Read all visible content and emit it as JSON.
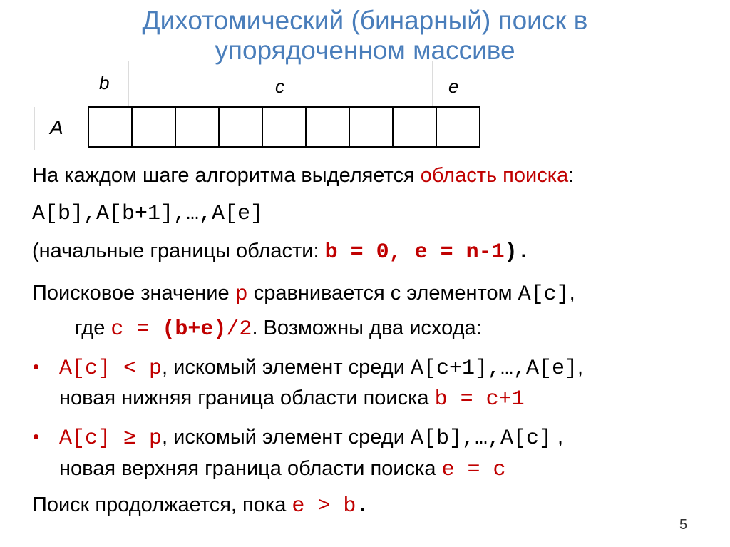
{
  "title": {
    "line1": "Дихотомический (бинарный) поиск в",
    "line2": "упорядоченном массиве"
  },
  "diagram": {
    "array_label": "A",
    "cell_count": 9,
    "index_labels": [
      "b",
      "c",
      "e"
    ]
  },
  "accent_color": "#c00000",
  "title_color": "#4a7ebb",
  "lines": [
    [
      {
        "t": "На каждом шаге алгоритма выделяется ",
        "c": ""
      },
      {
        "t": "область поиска",
        "c": "r"
      },
      {
        "t": ":",
        "c": ""
      }
    ],
    [
      {
        "t": "A[b],A[b+1],…,A[e]",
        "c": "m"
      }
    ],
    [
      {
        "t": "(начальные границы области: ",
        "c": ""
      },
      {
        "t": "b = 0, e = n-1",
        "c": "m r b"
      },
      {
        "t": ").",
        "c": "m b"
      }
    ],
    [
      {
        "t": "Поисковое значение ",
        "c": ""
      },
      {
        "t": "p",
        "c": "m r"
      },
      {
        "t": " сравнивается с элементом ",
        "c": ""
      },
      {
        "t": "A[c]",
        "c": "m"
      },
      {
        "t": ",",
        "c": ""
      }
    ],
    [
      {
        "t": "где ",
        "c": ""
      },
      {
        "t": "c = ",
        "c": "m r"
      },
      {
        "t": "(b+e)",
        "c": "m r b"
      },
      {
        "t": "/2",
        "c": "m r"
      },
      {
        "t": ". Возможны два исхода:",
        "c": ""
      }
    ],
    [
      {
        "t": "A[c] < p",
        "c": "m r"
      },
      {
        "t": ", искомый элемент среди ",
        "c": ""
      },
      {
        "t": "A[c+1],…,A[e]",
        "c": "m"
      },
      {
        "t": ",",
        "c": ""
      }
    ],
    [
      {
        "t": "новая нижняя граница области поиска ",
        "c": ""
      },
      {
        "t": "b = c+1",
        "c": "m r"
      }
    ],
    [
      {
        "t": "A[c] ≥ p",
        "c": "m r"
      },
      {
        "t": ", искомый элемент среди ",
        "c": ""
      },
      {
        "t": "A[b],…,A[c]",
        "c": "m"
      },
      {
        "t": " ,",
        "c": ""
      }
    ],
    [
      {
        "t": "новая верхняя граница области поиска ",
        "c": ""
      },
      {
        "t": "e = c",
        "c": "m r"
      }
    ],
    [
      {
        "t": "Поиск продолжается, пока ",
        "c": ""
      },
      {
        "t": "e > b",
        "c": "m r"
      },
      {
        "t": ".",
        "c": "m b"
      }
    ]
  ],
  "bullet": "•",
  "page_number": "5"
}
